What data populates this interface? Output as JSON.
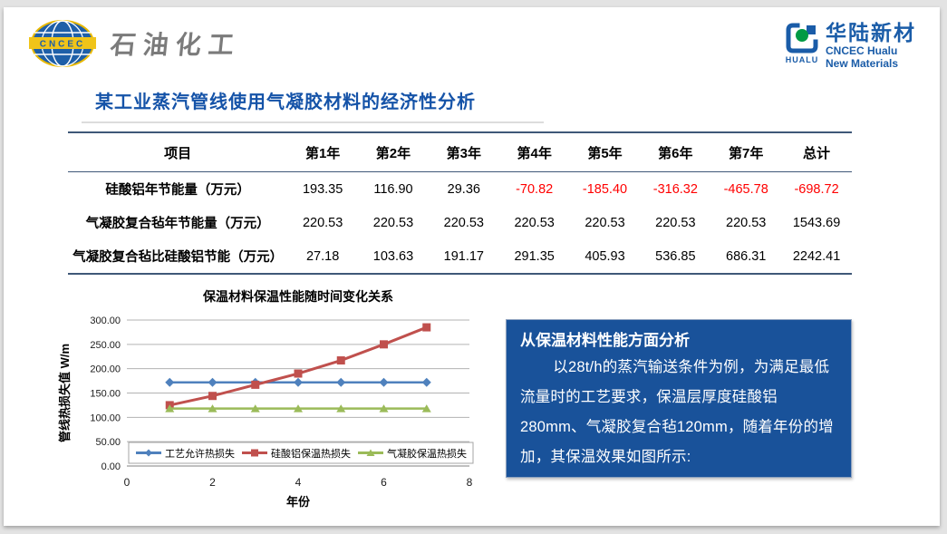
{
  "header": {
    "left_logo": {
      "acronym": "CNCEC",
      "company": "石油化工"
    },
    "right_logo": {
      "cn_name": "华陆新材",
      "en_line1": "CNCEC Hualu",
      "en_line2": "New Materials",
      "icon_text": "HUALU"
    }
  },
  "title": "某工业蒸汽管线使用气凝胶材料的经济性分析",
  "table": {
    "headers": [
      "项目",
      "第1年",
      "第2年",
      "第3年",
      "第4年",
      "第5年",
      "第6年",
      "第7年",
      "总计"
    ],
    "rows": [
      {
        "label": "硅酸铝年节能量（万元）",
        "values": [
          "193.35",
          "116.90",
          "29.36",
          "-70.82",
          "-185.40",
          "-316.32",
          "-465.78",
          "-698.72"
        ]
      },
      {
        "label": "气凝胶复合毡年节能量（万元）",
        "values": [
          "220.53",
          "220.53",
          "220.53",
          "220.53",
          "220.53",
          "220.53",
          "220.53",
          "1543.69"
        ]
      },
      {
        "label": "气凝胶复合毡比硅酸铝节能（万元）",
        "values": [
          "27.18",
          "103.63",
          "191.17",
          "291.35",
          "405.93",
          "536.85",
          "686.31",
          "2242.41"
        ]
      }
    ]
  },
  "chart_data": {
    "type": "line",
    "title": "保温材料保温性能随时间变化关系",
    "xlabel": "年份",
    "ylabel": "管线热损失值 W/m",
    "xlim": [
      0,
      8
    ],
    "ylim": [
      0,
      300
    ],
    "xticks": [
      0,
      2,
      4,
      6,
      8
    ],
    "yticks": [
      "0.00",
      "50.00",
      "100.00",
      "150.00",
      "200.00",
      "250.00",
      "300.00"
    ],
    "grid": true,
    "legend_position": "bottom-inside",
    "x": [
      1,
      2,
      3,
      4,
      5,
      6,
      7
    ],
    "series": [
      {
        "name": "工艺允许热损失",
        "color": "#4f81bd",
        "marker": "diamond",
        "values": [
          172,
          172,
          172,
          172,
          172,
          172,
          172
        ]
      },
      {
        "name": "硅酸铝保温热损失",
        "color": "#c0504d",
        "marker": "square",
        "values": [
          125,
          144,
          167,
          190,
          217,
          250,
          285
        ]
      },
      {
        "name": "气凝胶保温热损失",
        "color": "#9bbb59",
        "marker": "triangle",
        "values": [
          118,
          118,
          118,
          118,
          118,
          118,
          118
        ]
      }
    ]
  },
  "analysis_box": {
    "title": "从保温材料性能方面分析",
    "body": "以28t/h的蒸汽输送条件为例，为满足最低流量时的工艺要求，保温层厚度硅酸铝280mm、气凝胶复合毡120mm，随着年份的增加，其保温效果如图所示:"
  },
  "colors": {
    "title_blue": "#1553a8",
    "brand_blue": "#1a5ca8",
    "table_border": "#3f5878",
    "negative_value": "#ff0000",
    "analysis_bg": "#19529a",
    "series_blue": "#4f81bd",
    "series_red": "#c0504d",
    "series_green": "#9bbb59"
  }
}
